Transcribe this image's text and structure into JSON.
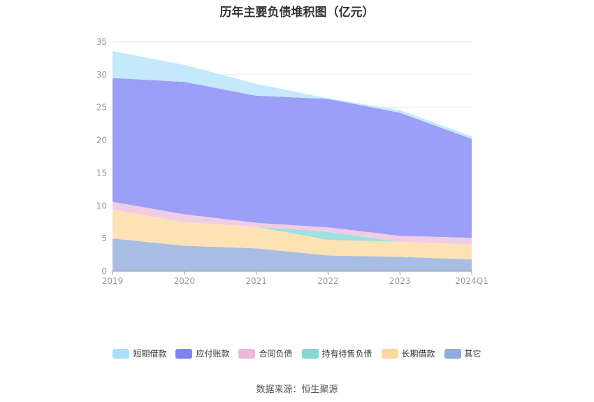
{
  "title": "历年主要负债堆积图（亿元）",
  "source": "数据来源：恒生聚源",
  "chart_data": {
    "type": "area",
    "stacked": true,
    "categories": [
      "2019",
      "2020",
      "2021",
      "2022",
      "2023",
      "2024Q1"
    ],
    "y_ticks": [
      0,
      5,
      10,
      15,
      20,
      25,
      30,
      35
    ],
    "ylim": [
      0,
      35
    ],
    "grid": true,
    "legend_position": "bottom",
    "series": [
      {
        "name": "其它",
        "color": "#a8bde3",
        "values": [
          5.0,
          3.9,
          3.5,
          2.4,
          2.2,
          1.8
        ]
      },
      {
        "name": "长期借款",
        "color": "#fde2b4",
        "values": [
          4.4,
          3.6,
          3.3,
          2.4,
          2.3,
          2.3
        ]
      },
      {
        "name": "持有待售负债",
        "color": "#9fe0e0",
        "values": [
          0.0,
          0.0,
          0.0,
          1.2,
          0.0,
          0.0
        ]
      },
      {
        "name": "合同负债",
        "color": "#f0cde6",
        "values": [
          1.2,
          1.2,
          0.6,
          0.7,
          0.9,
          1.0
        ]
      },
      {
        "name": "应付账款",
        "color": "#9b9ff7",
        "values": [
          18.9,
          20.2,
          19.4,
          19.6,
          18.8,
          15.1
        ]
      },
      {
        "name": "短期借款",
        "color": "#c3e9fb",
        "values": [
          4.1,
          2.6,
          1.8,
          0.1,
          0.4,
          0.4
        ]
      }
    ],
    "legend": [
      {
        "name": "短期借款",
        "color": "#a9dffb"
      },
      {
        "name": "应付账款",
        "color": "#7e82f4"
      },
      {
        "name": "合同负债",
        "color": "#eab9da"
      },
      {
        "name": "持有待售负债",
        "color": "#87d7d7"
      },
      {
        "name": "长期借款",
        "color": "#fdd9a2"
      },
      {
        "name": "其它",
        "color": "#90acdc"
      }
    ]
  }
}
